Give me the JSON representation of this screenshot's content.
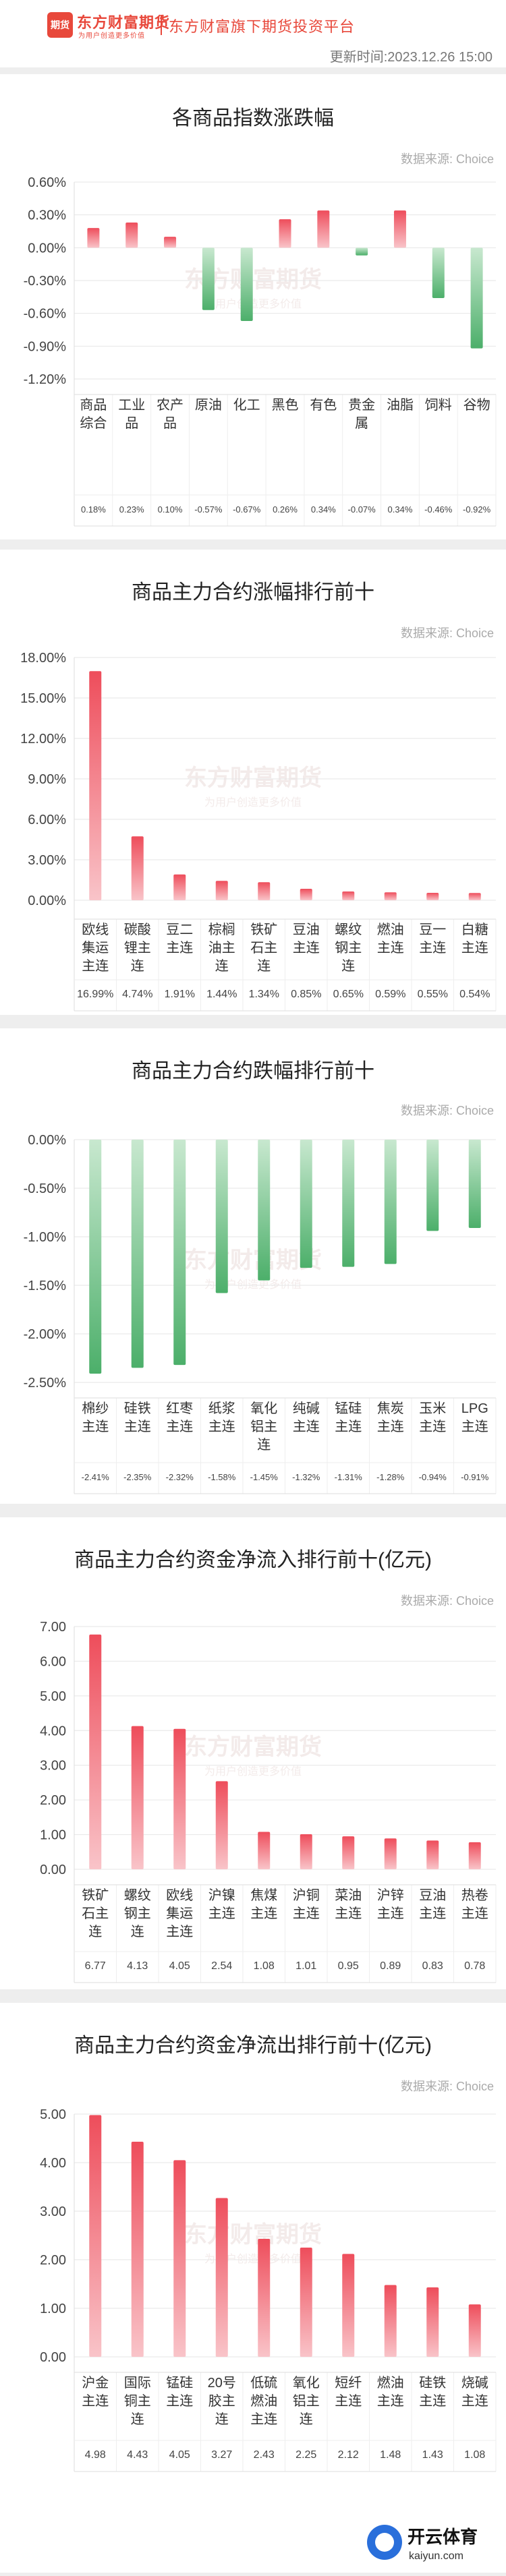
{
  "header": {
    "logo_text": "期货",
    "brand": "东方财富期货",
    "brand_sub": "为用户创造更多价值",
    "platform": "东方财富旗下期货投资平台",
    "update_label": "更新时间:",
    "update_time": "2023.12.26 15:00"
  },
  "watermark": {
    "main": "东方财富期货",
    "sub": "为用户创造更多价值"
  },
  "footer": {
    "logo_text": "开云体育",
    "domain": "kaiyun.com"
  },
  "colors": {
    "up": "#ee4d5b",
    "down": "#4caf6a",
    "brand": "#e8483b"
  },
  "chart_data": [
    {
      "type": "bar",
      "title": "各商品指数涨跌幅",
      "source": "数据来源: Choice",
      "categories": [
        [
          "商品",
          "综合"
        ],
        [
          "工业",
          "品"
        ],
        [
          "农产",
          "品"
        ],
        [
          "原油"
        ],
        [
          "化工"
        ],
        [
          "黑色"
        ],
        [
          "有色"
        ],
        [
          "贵金",
          "属"
        ],
        [
          "油脂"
        ],
        [
          "饲料"
        ],
        [
          "谷物"
        ]
      ],
      "values": [
        0.18,
        0.23,
        0.1,
        -0.57,
        -0.67,
        0.26,
        0.34,
        -0.07,
        0.34,
        -0.46,
        -0.92
      ],
      "value_labels": [
        "0.18%",
        "0.23%",
        "0.10%",
        "-0.57%",
        "-0.67%",
        "0.26%",
        "0.34%",
        "-0.07%",
        "0.34%",
        "-0.46%",
        "-0.92%"
      ],
      "yticks": [
        "0.60%",
        "0.30%",
        "0.00%",
        "-0.30%",
        "-0.60%",
        "-0.90%",
        "-1.20%"
      ],
      "ylim": [
        -1.2,
        0.6
      ]
    },
    {
      "type": "bar",
      "title": "商品主力合约涨幅排行前十",
      "source": "数据来源: Choice",
      "categories": [
        [
          "欧线",
          "集运",
          "主连"
        ],
        [
          "碳酸",
          "锂主",
          "连"
        ],
        [
          "豆二",
          "主连"
        ],
        [
          "棕榈",
          "油主",
          "连"
        ],
        [
          "铁矿",
          "石主",
          "连"
        ],
        [
          "豆油",
          "主连"
        ],
        [
          "螺纹",
          "钢主",
          "连"
        ],
        [
          "燃油",
          "主连"
        ],
        [
          "豆一",
          "主连"
        ],
        [
          "白糖",
          "主连"
        ]
      ],
      "values": [
        16.99,
        4.74,
        1.91,
        1.44,
        1.34,
        0.85,
        0.65,
        0.59,
        0.55,
        0.54
      ],
      "value_labels": [
        "16.99%",
        "4.74%",
        "1.91%",
        "1.44%",
        "1.34%",
        "0.85%",
        "0.65%",
        "0.59%",
        "0.55%",
        "0.54%"
      ],
      "yticks": [
        "18.00%",
        "15.00%",
        "12.00%",
        "9.00%",
        "6.00%",
        "3.00%",
        "0.00%"
      ],
      "ylim": [
        0,
        18
      ]
    },
    {
      "type": "bar",
      "title": "商品主力合约跌幅排行前十",
      "source": "数据来源: Choice",
      "categories": [
        [
          "棉纱",
          "主连"
        ],
        [
          "硅铁",
          "主连"
        ],
        [
          "红枣",
          "主连"
        ],
        [
          "纸浆",
          "主连"
        ],
        [
          "氧化",
          "铝主",
          "连"
        ],
        [
          "纯碱",
          "主连"
        ],
        [
          "锰硅",
          "主连"
        ],
        [
          "焦炭",
          "主连"
        ],
        [
          "玉米",
          "主连"
        ],
        [
          "LPG",
          "主连"
        ]
      ],
      "values": [
        -2.41,
        -2.35,
        -2.32,
        -1.58,
        -1.45,
        -1.32,
        -1.31,
        -1.28,
        -0.94,
        -0.91
      ],
      "value_labels": [
        "-2.41%",
        "-2.35%",
        "-2.32%",
        "-1.58%",
        "-1.45%",
        "-1.32%",
        "-1.31%",
        "-1.28%",
        "-0.94%",
        "-0.91%"
      ],
      "yticks": [
        "0.00%",
        "-0.50%",
        "-1.00%",
        "-1.50%",
        "-2.00%",
        "-2.50%"
      ],
      "ylim": [
        -2.5,
        0
      ]
    },
    {
      "type": "bar",
      "title": "商品主力合约资金净流入排行前十(亿元)",
      "source": "数据来源: Choice",
      "categories": [
        [
          "铁矿",
          "石主",
          "连"
        ],
        [
          "螺纹",
          "钢主",
          "连"
        ],
        [
          "欧线",
          "集运",
          "主连"
        ],
        [
          "沪镍",
          "主连"
        ],
        [
          "焦煤",
          "主连"
        ],
        [
          "沪铜",
          "主连"
        ],
        [
          "菜油",
          "主连"
        ],
        [
          "沪锌",
          "主连"
        ],
        [
          "豆油",
          "主连"
        ],
        [
          "热卷",
          "主连"
        ]
      ],
      "values": [
        6.77,
        4.13,
        4.05,
        2.54,
        1.08,
        1.01,
        0.95,
        0.89,
        0.83,
        0.78
      ],
      "value_labels": [
        "6.77",
        "4.13",
        "4.05",
        "2.54",
        "1.08",
        "1.01",
        "0.95",
        "0.89",
        "0.83",
        "0.78"
      ],
      "yticks": [
        "7.00",
        "6.00",
        "5.00",
        "4.00",
        "3.00",
        "2.00",
        "1.00",
        "0.00"
      ],
      "ylim": [
        0,
        7
      ]
    },
    {
      "type": "bar",
      "title": "商品主力合约资金净流出排行前十(亿元)",
      "source": "数据来源: Choice",
      "categories": [
        [
          "沪金",
          "主连"
        ],
        [
          "国际",
          "铜主",
          "连"
        ],
        [
          "锰硅",
          "主连"
        ],
        [
          "20号",
          "胶主",
          "连"
        ],
        [
          "低硫",
          "燃油",
          "主连"
        ],
        [
          "氧化",
          "铝主",
          "连"
        ],
        [
          "短纤",
          "主连"
        ],
        [
          "燃油",
          "主连"
        ],
        [
          "硅铁",
          "主连"
        ],
        [
          "烧碱",
          "主连"
        ]
      ],
      "values": [
        4.98,
        4.43,
        4.05,
        3.27,
        2.43,
        2.25,
        2.12,
        1.48,
        1.43,
        1.08
      ],
      "value_labels": [
        "4.98",
        "4.43",
        "4.05",
        "3.27",
        "2.43",
        "2.25",
        "2.12",
        "1.48",
        "1.43",
        "1.08"
      ],
      "yticks": [
        "5.00",
        "4.00",
        "3.00",
        "2.00",
        "1.00",
        "0.00"
      ],
      "ylim": [
        0,
        5
      ]
    }
  ]
}
